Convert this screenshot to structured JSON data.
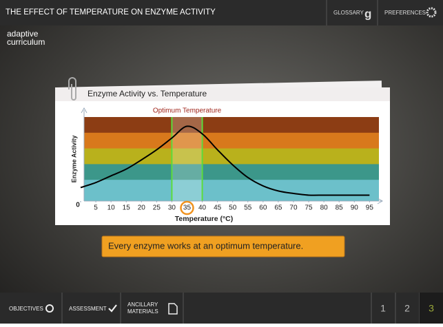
{
  "header": {
    "title": "THE EFFECT OF TEMPERATURE ON ENZYME ACTIVITY",
    "glossary": "GLOSSARY",
    "preferences": "PREFERENCES"
  },
  "logo": {
    "line1": "adaptive",
    "line2": "curriculum"
  },
  "card": {
    "title": "Enzyme Activity vs. Temperature"
  },
  "chart_data": {
    "type": "line",
    "x_label": "Temperature (°C)",
    "y_label": "Enzyme Activity",
    "x": [
      0,
      5,
      10,
      15,
      20,
      25,
      30,
      35,
      40,
      45,
      50,
      55,
      60,
      65,
      70,
      75,
      80,
      85,
      90,
      95
    ],
    "values": [
      16,
      22,
      30,
      38,
      49,
      61,
      75,
      89,
      80,
      61,
      43,
      28,
      18,
      12,
      9,
      7,
      7,
      7,
      7,
      7
    ],
    "color": "#000000",
    "xlim": [
      0,
      99
    ],
    "ylim": [
      0,
      100
    ],
    "xticks": [
      0,
      5,
      10,
      15,
      20,
      25,
      30,
      35,
      40,
      45,
      50,
      55,
      60,
      65,
      70,
      75,
      80,
      85,
      90,
      95
    ],
    "circled_xtick": 35,
    "highlight": {
      "label": "Optimum Temperature",
      "range": [
        30,
        40
      ],
      "color": "#5cdc3c"
    }
  },
  "caption": "Every enzyme works at an optimum temperature.",
  "footer": {
    "objectives": "OBJECTIVES",
    "assessment": "ASSESSMENT",
    "ancillary_1": "ANCILLARY",
    "ancillary_2": "MATERIALS",
    "pages": [
      "1",
      "2",
      "3"
    ],
    "current_page": 3
  }
}
